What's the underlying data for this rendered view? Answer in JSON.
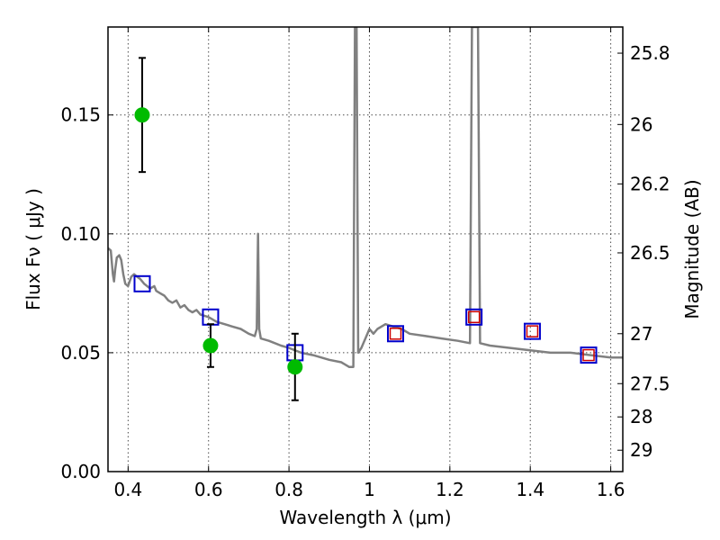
{
  "chart_data": {
    "type": "scatter",
    "xlabel": "Wavelength  λ (μm)",
    "ylabel": "Flux  Fν  ( μJy )",
    "ylabel_right": "Magnitude (AB)",
    "xlim": [
      0.35,
      1.63
    ],
    "ylim": [
      0.0,
      0.187
    ],
    "grid": true,
    "x_ticks": [
      0.4,
      0.6,
      0.8,
      1.0,
      1.2,
      1.4,
      1.6
    ],
    "x_tick_labels": [
      "0.4",
      "0.6",
      "0.8",
      "1",
      "1.2",
      "1.4",
      "1.6"
    ],
    "y_ticks": [
      0.0,
      0.05,
      0.1,
      0.15
    ],
    "y_tick_labels": [
      "0.00",
      "0.05",
      "0.10",
      "0.15"
    ],
    "y2_ticks": [
      {
        "label": "25.8",
        "flux": 0.176
      },
      {
        "label": "26",
        "flux": 0.146
      },
      {
        "label": "26.2",
        "flux": 0.121
      },
      {
        "label": "26.5",
        "flux": 0.092
      },
      {
        "label": "27",
        "flux": 0.058
      },
      {
        "label": "27.5",
        "flux": 0.037
      },
      {
        "label": "28",
        "flux": 0.023
      },
      {
        "label": "29",
        "flux": 0.009
      }
    ],
    "model_spectrum": {
      "color": "#808080",
      "points": [
        [
          0.35,
          0.094
        ],
        [
          0.357,
          0.093
        ],
        [
          0.362,
          0.083
        ],
        [
          0.365,
          0.08
        ],
        [
          0.368,
          0.085
        ],
        [
          0.372,
          0.09
        ],
        [
          0.378,
          0.091
        ],
        [
          0.383,
          0.089
        ],
        [
          0.388,
          0.083
        ],
        [
          0.393,
          0.079
        ],
        [
          0.4,
          0.078
        ],
        [
          0.408,
          0.082
        ],
        [
          0.415,
          0.083
        ],
        [
          0.422,
          0.082
        ],
        [
          0.43,
          0.081
        ],
        [
          0.44,
          0.079
        ],
        [
          0.455,
          0.077
        ],
        [
          0.465,
          0.078
        ],
        [
          0.47,
          0.076
        ],
        [
          0.48,
          0.075
        ],
        [
          0.49,
          0.074
        ],
        [
          0.5,
          0.072
        ],
        [
          0.51,
          0.071
        ],
        [
          0.52,
          0.072
        ],
        [
          0.53,
          0.069
        ],
        [
          0.54,
          0.07
        ],
        [
          0.55,
          0.068
        ],
        [
          0.56,
          0.067
        ],
        [
          0.57,
          0.068
        ],
        [
          0.58,
          0.066
        ],
        [
          0.6,
          0.065
        ],
        [
          0.62,
          0.063
        ],
        [
          0.64,
          0.062
        ],
        [
          0.66,
          0.061
        ],
        [
          0.68,
          0.06
        ],
        [
          0.7,
          0.058
        ],
        [
          0.715,
          0.057
        ],
        [
          0.72,
          0.06
        ],
        [
          0.723,
          0.1
        ],
        [
          0.726,
          0.06
        ],
        [
          0.73,
          0.056
        ],
        [
          0.75,
          0.055
        ],
        [
          0.78,
          0.053
        ],
        [
          0.8,
          0.052
        ],
        [
          0.83,
          0.05
        ],
        [
          0.86,
          0.049
        ],
        [
          0.9,
          0.047
        ],
        [
          0.93,
          0.046
        ],
        [
          0.95,
          0.044
        ],
        [
          0.96,
          0.044
        ],
        [
          0.964,
          0.187
        ],
        [
          0.968,
          0.187
        ],
        [
          0.972,
          0.05
        ],
        [
          0.98,
          0.052
        ],
        [
          0.99,
          0.056
        ],
        [
          1.0,
          0.06
        ],
        [
          1.01,
          0.058
        ],
        [
          1.02,
          0.06
        ],
        [
          1.04,
          0.062
        ],
        [
          1.06,
          0.061
        ],
        [
          1.08,
          0.06
        ],
        [
          1.1,
          0.058
        ],
        [
          1.14,
          0.057
        ],
        [
          1.18,
          0.056
        ],
        [
          1.22,
          0.055
        ],
        [
          1.25,
          0.054
        ],
        [
          1.255,
          0.187
        ],
        [
          1.27,
          0.187
        ],
        [
          1.275,
          0.054
        ],
        [
          1.3,
          0.053
        ],
        [
          1.35,
          0.052
        ],
        [
          1.4,
          0.051
        ],
        [
          1.45,
          0.05
        ],
        [
          1.5,
          0.05
        ],
        [
          1.55,
          0.049
        ],
        [
          1.6,
          0.048
        ],
        [
          1.63,
          0.048
        ]
      ]
    },
    "model_photometry": {
      "color": "#0000cc",
      "marker": "open-square",
      "points": [
        [
          0.435,
          0.079
        ],
        [
          0.605,
          0.065
        ],
        [
          0.815,
          0.05
        ],
        [
          1.065,
          0.058
        ],
        [
          1.26,
          0.065
        ],
        [
          1.405,
          0.059
        ],
        [
          1.545,
          0.049
        ]
      ]
    },
    "observed_upper": {
      "color": "#cc0000",
      "marker": "open-square-small",
      "points": [
        [
          1.065,
          0.058
        ],
        [
          1.26,
          0.065
        ],
        [
          1.405,
          0.059
        ],
        [
          1.545,
          0.049
        ]
      ]
    },
    "observed_detections": {
      "color": "#00bb00",
      "marker": "filled-circle",
      "points": [
        {
          "x": 0.435,
          "y": 0.15,
          "yerr_low": 0.126,
          "yerr_high": 0.174
        },
        {
          "x": 0.605,
          "y": 0.053,
          "yerr_low": 0.044,
          "yerr_high": 0.062
        },
        {
          "x": 0.815,
          "y": 0.044,
          "yerr_low": 0.03,
          "yerr_high": 0.058
        }
      ]
    }
  }
}
